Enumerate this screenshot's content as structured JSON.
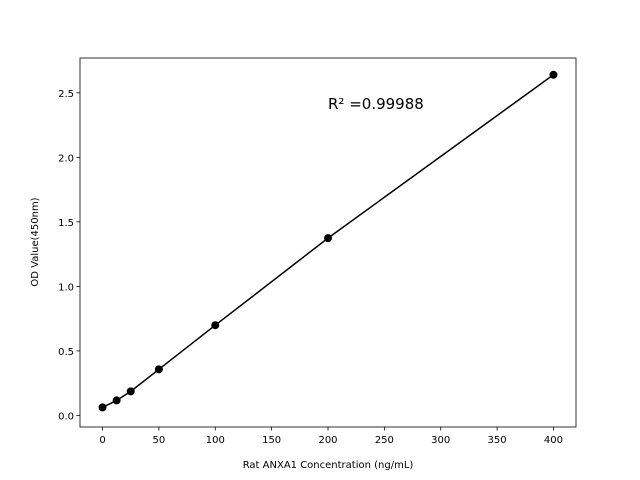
{
  "chart_data": {
    "type": "line",
    "annotation": "R² =0.99988",
    "x_label": "Rat ANXA1 Concentration (ng/mL)",
    "y_label": "OD Value(450nm)",
    "x": [
      0,
      12.5,
      25,
      50,
      100,
      200,
      400
    ],
    "series": [
      {
        "color": "#000000",
        "values": [
          0.062,
          0.116,
          0.186,
          0.357,
          0.699,
          1.374,
          2.64
        ]
      }
    ],
    "markers": true,
    "xlim": [
      -20,
      420
    ],
    "ylim": [
      -0.09,
      2.77
    ],
    "xticks": [
      0,
      50,
      100,
      150,
      200,
      250,
      300,
      350,
      400
    ],
    "yticks": [
      {
        "value": 0,
        "label": "0.0"
      },
      {
        "value": 0.5,
        "label": "0.5"
      },
      {
        "value": 1,
        "label": "1.0"
      },
      {
        "value": 1.5,
        "label": "1.5"
      },
      {
        "value": 2,
        "label": "2.0"
      },
      {
        "value": 2.5,
        "label": "2.5"
      }
    ],
    "grid": false
  }
}
